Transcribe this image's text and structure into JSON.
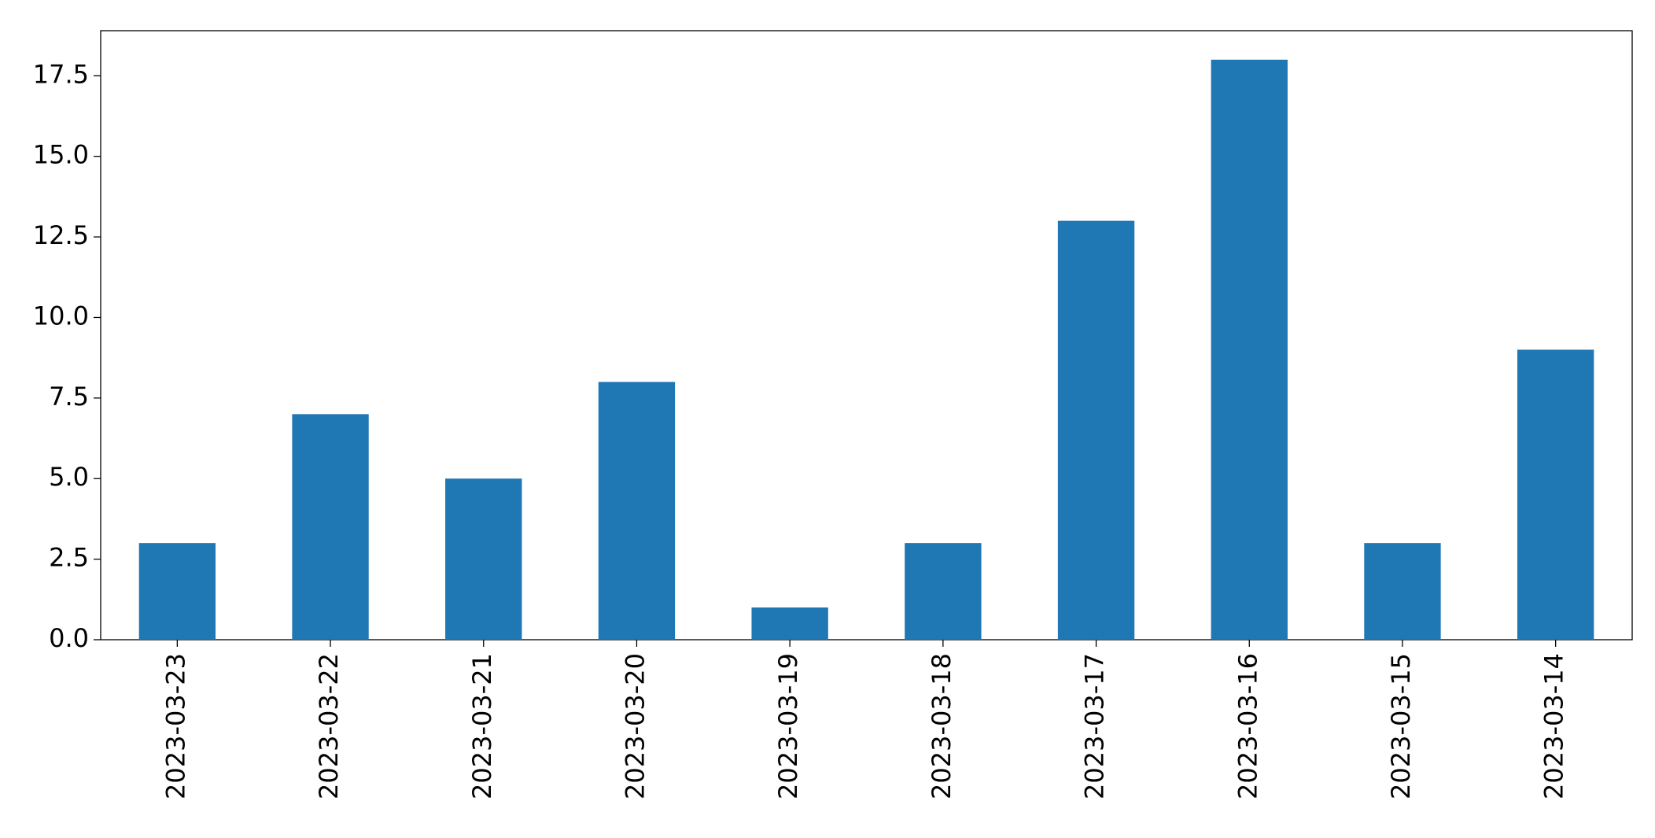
{
  "chart_data": {
    "type": "bar",
    "categories": [
      "2023-03-23",
      "2023-03-22",
      "2023-03-21",
      "2023-03-20",
      "2023-03-19",
      "2023-03-18",
      "2023-03-17",
      "2023-03-16",
      "2023-03-15",
      "2023-03-14"
    ],
    "values": [
      3,
      7,
      5,
      8,
      1,
      3,
      13,
      18,
      3,
      9
    ],
    "color": "#1f77b4",
    "ylim": [
      0,
      18.9
    ],
    "yticks": [
      {
        "value": 0,
        "label": "0.0"
      },
      2.5,
      {
        "value": 5,
        "label": "5.0"
      },
      7.5,
      {
        "value": 10,
        "label": "10.0"
      },
      12.5,
      {
        "value": 15,
        "label": "15.0"
      },
      17.5
    ],
    "grid": false
  }
}
